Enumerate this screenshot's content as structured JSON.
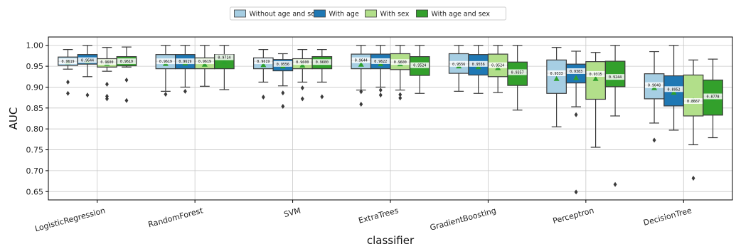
{
  "chart_data": {
    "type": "box",
    "xlabel": "classifier",
    "ylabel": "AUC",
    "ylim": [
      0.63,
      1.02
    ],
    "yticks": [
      0.65,
      0.7,
      0.75,
      0.8,
      0.85,
      0.9,
      0.95,
      1.0
    ],
    "yticks_labels": [
      "0.65",
      "0.70",
      "0.75",
      "0.80",
      "0.85",
      "0.90",
      "0.95",
      "1.00"
    ],
    "grid": true,
    "legend_placement": "top-center",
    "categories": [
      "LogisticRegression",
      "RandomForest",
      "SVM",
      "ExtraTrees",
      "GradientBoosting",
      "Perceptron",
      "DecisionTree"
    ],
    "series": [
      {
        "name": "Without age and sex",
        "color": "#a6cee3",
        "boxes": [
          {
            "q1": 0.952,
            "median": 0.9619,
            "q3": 0.972,
            "whisker_low": 0.943,
            "whisker_high": 0.99,
            "mean": 0.96,
            "median_label": "0.9619",
            "outliers": [
              0.912,
              0.885
            ]
          },
          {
            "q1": 0.944,
            "median": 0.9619,
            "q3": 0.978,
            "whisker_low": 0.89,
            "whisker_high": 1.0,
            "mean": 0.956,
            "median_label": "0.9619",
            "outliers": [
              0.883
            ]
          },
          {
            "q1": 0.944,
            "median": 0.9619,
            "q3": 0.97,
            "whisker_low": 0.912,
            "whisker_high": 0.99,
            "mean": 0.953,
            "median_label": "0.9619",
            "outliers": [
              0.876
            ]
          },
          {
            "q1": 0.944,
            "median": 0.9644,
            "q3": 0.979,
            "whisker_low": 0.893,
            "whisker_high": 1.0,
            "mean": 0.954,
            "median_label": "0.9644",
            "outliers": [
              0.889,
              0.859
            ]
          },
          {
            "q1": 0.933,
            "median": 0.9556,
            "q3": 0.98,
            "whisker_low": 0.89,
            "whisker_high": 1.0,
            "mean": 0.95,
            "median_label": "0.9556",
            "outliers": []
          },
          {
            "q1": 0.885,
            "median": 0.9333,
            "q3": 0.965,
            "whisker_low": 0.805,
            "whisker_high": 0.995,
            "mean": 0.92,
            "median_label": "0.9333",
            "outliers": []
          },
          {
            "q1": 0.872,
            "median": 0.9048,
            "q3": 0.932,
            "whisker_low": 0.814,
            "whisker_high": 0.985,
            "mean": 0.898,
            "median_label": "0.9048",
            "outliers": [
              0.773
            ]
          }
        ]
      },
      {
        "name": "With age",
        "color": "#1f78b4",
        "boxes": [
          {
            "q1": 0.955,
            "median": 0.9644,
            "q3": 0.978,
            "whisker_low": 0.925,
            "whisker_high": 1.0,
            "mean": 0.962,
            "median_label": "0.9644",
            "outliers": [
              0.881
            ]
          },
          {
            "q1": 0.944,
            "median": 0.9619,
            "q3": 0.978,
            "whisker_low": 0.9,
            "whisker_high": 1.0,
            "mean": 0.957,
            "median_label": "0.9619",
            "outliers": [
              0.89
            ]
          },
          {
            "q1": 0.939,
            "median": 0.9556,
            "q3": 0.966,
            "whisker_low": 0.903,
            "whisker_high": 0.98,
            "mean": 0.95,
            "median_label": "0.9556",
            "outliers": [
              0.886,
              0.854
            ]
          },
          {
            "q1": 0.944,
            "median": 0.9622,
            "q3": 0.979,
            "whisker_low": 0.9,
            "whisker_high": 1.0,
            "mean": 0.955,
            "median_label": "0.9622",
            "outliers": [
              0.893,
              0.881
            ]
          },
          {
            "q1": 0.929,
            "median": 0.9556,
            "q3": 0.978,
            "whisker_low": 0.885,
            "whisker_high": 1.0,
            "mean": 0.948,
            "median_label": "0.9556",
            "outliers": []
          },
          {
            "q1": 0.91,
            "median": 0.9383,
            "q3": 0.955,
            "whisker_low": 0.853,
            "whisker_high": 0.986,
            "mean": 0.922,
            "median_label": "0.9383",
            "outliers": [
              0.834,
              0.649
            ]
          },
          {
            "q1": 0.855,
            "median": 0.8952,
            "q3": 0.927,
            "whisker_low": 0.797,
            "whisker_high": 1.0,
            "mean": 0.887,
            "median_label": "0.8952",
            "outliers": []
          }
        ]
      },
      {
        "name": "With sex",
        "color": "#b2df8a",
        "boxes": [
          {
            "q1": 0.948,
            "median": 0.96,
            "q3": 0.968,
            "whisker_low": 0.938,
            "whisker_high": 0.995,
            "mean": 0.956,
            "median_label": "0.9600",
            "outliers": [
              0.907,
              0.878,
              0.872
            ]
          },
          {
            "q1": 0.944,
            "median": 0.9619,
            "q3": 0.97,
            "whisker_low": 0.902,
            "whisker_high": 1.0,
            "mean": 0.954,
            "median_label": "0.9619",
            "outliers": []
          },
          {
            "q1": 0.944,
            "median": 0.96,
            "q3": 0.968,
            "whisker_low": 0.912,
            "whisker_high": 0.99,
            "mean": 0.952,
            "median_label": "0.9600",
            "outliers": [
              0.898,
              0.872
            ]
          },
          {
            "q1": 0.942,
            "median": 0.96,
            "q3": 0.98,
            "whisker_low": 0.893,
            "whisker_high": 1.0,
            "mean": 0.955,
            "median_label": "0.9600",
            "outliers": [
              0.882,
              0.874
            ]
          },
          {
            "q1": 0.925,
            "median": 0.9524,
            "q3": 0.979,
            "whisker_low": 0.887,
            "whisker_high": 1.0,
            "mean": 0.946,
            "median_label": "0.9524",
            "outliers": []
          },
          {
            "q1": 0.871,
            "median": 0.9315,
            "q3": 0.961,
            "whisker_low": 0.756,
            "whisker_high": 0.983,
            "mean": 0.92,
            "median_label": "0.9315",
            "outliers": []
          },
          {
            "q1": 0.831,
            "median": 0.8667,
            "q3": 0.929,
            "whisker_low": 0.762,
            "whisker_high": 0.965,
            "mean": 0.868,
            "median_label": "0.8667",
            "outliers": [
              0.682
            ]
          }
        ]
      },
      {
        "name": "With age and sex",
        "color": "#33a02c",
        "boxes": [
          {
            "q1": 0.951,
            "median": 0.9619,
            "q3": 0.973,
            "whisker_low": 0.948,
            "whisker_high": 0.996,
            "mean": 0.961,
            "median_label": "0.9619",
            "outliers": [
              0.917,
              0.868
            ]
          },
          {
            "q1": 0.944,
            "median": 0.9714,
            "q3": 0.978,
            "whisker_low": 0.894,
            "whisker_high": 1.0,
            "mean": 0.96,
            "median_label": "0.9714",
            "outliers": []
          },
          {
            "q1": 0.944,
            "median": 0.96,
            "q3": 0.973,
            "whisker_low": 0.912,
            "whisker_high": 0.99,
            "mean": 0.955,
            "median_label": "0.9600",
            "outliers": [
              0.877
            ]
          },
          {
            "q1": 0.928,
            "median": 0.9524,
            "q3": 0.973,
            "whisker_low": 0.885,
            "whisker_high": 1.0,
            "mean": 0.95,
            "median_label": "0.9524",
            "outliers": []
          },
          {
            "q1": 0.904,
            "median": 0.9357,
            "q3": 0.96,
            "whisker_low": 0.845,
            "whisker_high": 1.0,
            "mean": 0.93,
            "median_label": "0.9357",
            "outliers": []
          },
          {
            "q1": 0.901,
            "median": 0.9244,
            "q3": 0.962,
            "whisker_low": 0.831,
            "whisker_high": 1.0,
            "mean": 0.92,
            "median_label": "0.9244",
            "outliers": [
              0.667
            ]
          },
          {
            "q1": 0.833,
            "median": 0.8778,
            "q3": 0.917,
            "whisker_low": 0.779,
            "whisker_high": 0.967,
            "mean": 0.872,
            "median_label": "0.8778",
            "outliers": []
          }
        ]
      }
    ]
  }
}
